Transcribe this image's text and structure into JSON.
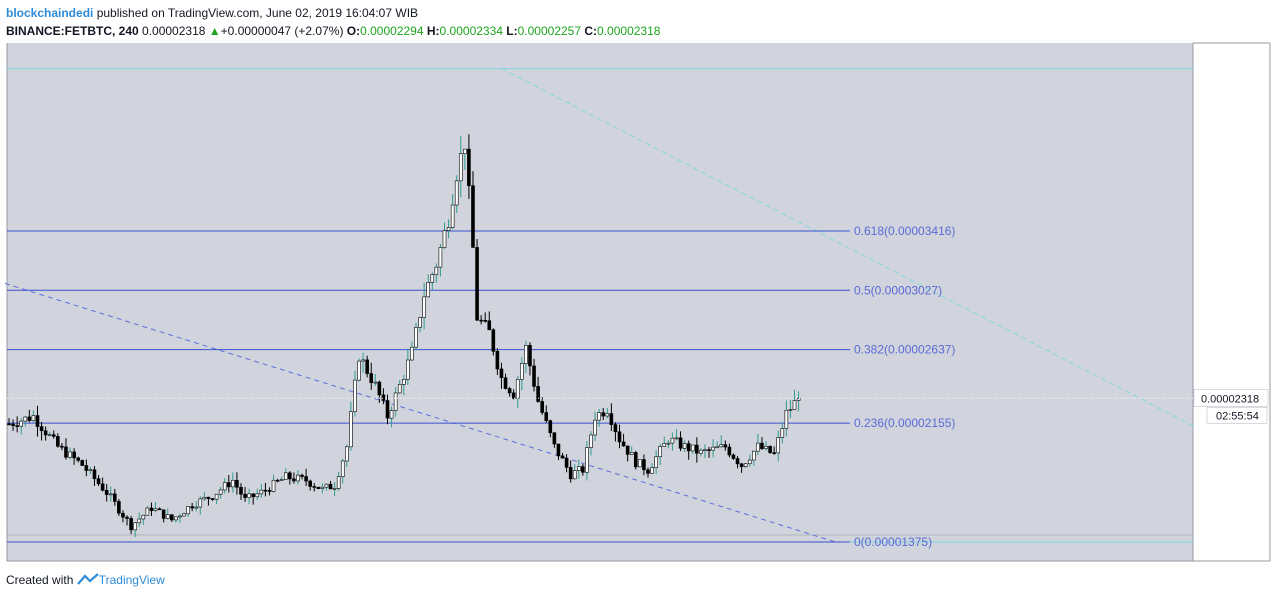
{
  "header": {
    "author": "blockchaindedi",
    "published": "published on TradingView.com, June 02, 2019 16:04:07 WIB",
    "symbol": "BINANCE:FETBTC, 240",
    "last": "0.00002318",
    "change": "+0.00000047 (+2.07%)",
    "o_label": "O:",
    "o_value": "0.00002294",
    "h_label": "H:",
    "h_value": "0.00002334",
    "l_label": "L:",
    "l_value": "0.00002257",
    "c_label": "C:",
    "c_value": "0.00002318"
  },
  "footer": {
    "created": "Created with",
    "brand": "TradingView"
  },
  "colors": {
    "plot_bg": "#d1d4dc",
    "fib_line": "#3a4fd0",
    "fib_text": "#5a6ad8",
    "cyan": "#7fd8e0",
    "candle_up": "#ffffff",
    "candle_down": "#000000",
    "wick_up": "#2e9e8e",
    "wick_down": "#000000",
    "price_tag_bg": "#ffffff"
  },
  "chart_data": {
    "type": "candlestick",
    "yrange": [
      1.25e-05,
      4.65e-05
    ],
    "candle_count": 195,
    "price_tag": {
      "value": "0.00002318",
      "timer": "02:55:54"
    },
    "fib_levels": [
      {
        "label": "0.618(0.00003416)",
        "price": 3.416e-05
      },
      {
        "label": "0.5(0.00003027)",
        "price": 3.027e-05
      },
      {
        "label": "0.382(0.00002637)",
        "price": 2.637e-05
      },
      {
        "label": "0.236(0.00002155)",
        "price": 2.155e-05
      },
      {
        "label": "0(0.00001375)",
        "price": 1.375e-05
      }
    ],
    "top_cyan_level": 4.482e-05,
    "trend_lines": [
      {
        "name": "falling-trendline-blue",
        "style": "dashed",
        "from": {
          "i": -1,
          "p": 3.072e-05
        },
        "to": {
          "i": 203,
          "p": 1.375e-05
        }
      },
      {
        "name": "falling-trendline-cyan",
        "style": "dashed",
        "from": {
          "i": 121,
          "p": 4.482e-05
        },
        "to": {
          "i": 291,
          "p": 2.136e-05
        }
      }
    ],
    "waypoints": [
      [
        0,
        2.15e-05
      ],
      [
        6,
        2.2e-05
      ],
      [
        12,
        2e-05
      ],
      [
        18,
        1.88e-05
      ],
      [
        24,
        1.7e-05
      ],
      [
        30,
        1.48e-05
      ],
      [
        35,
        1.6e-05
      ],
      [
        40,
        1.52e-05
      ],
      [
        45,
        1.62e-05
      ],
      [
        50,
        1.68e-05
      ],
      [
        55,
        1.78e-05
      ],
      [
        58,
        1.65e-05
      ],
      [
        62,
        1.7e-05
      ],
      [
        68,
        1.8e-05
      ],
      [
        73,
        1.78e-05
      ],
      [
        77,
        1.72e-05
      ],
      [
        80,
        1.75e-05
      ],
      [
        83,
        2e-05
      ],
      [
        86,
        2.6e-05
      ],
      [
        90,
        2.4e-05
      ],
      [
        93,
        2.2e-05
      ],
      [
        96,
        2.4e-05
      ],
      [
        99,
        2.62e-05
      ],
      [
        102,
        3e-05
      ],
      [
        105,
        3.2e-05
      ],
      [
        108,
        3.5e-05
      ],
      [
        110,
        3.8e-05
      ],
      [
        112,
        4e-05
      ],
      [
        114,
        3.3e-05
      ],
      [
        115,
        2.85e-05
      ],
      [
        118,
        2.75e-05
      ],
      [
        121,
        2.45e-05
      ],
      [
        124,
        2.35e-05
      ],
      [
        127,
        2.65e-05
      ],
      [
        130,
        2.3e-05
      ],
      [
        134,
        2e-05
      ],
      [
        138,
        1.82e-05
      ],
      [
        141,
        1.85e-05
      ],
      [
        144,
        2.2e-05
      ],
      [
        147,
        2.25e-05
      ],
      [
        150,
        2.05e-05
      ],
      [
        154,
        1.9e-05
      ],
      [
        157,
        1.85e-05
      ],
      [
        162,
        2.05e-05
      ],
      [
        166,
        2e-05
      ],
      [
        170,
        1.96e-05
      ],
      [
        176,
        2e-05
      ],
      [
        180,
        1.88e-05
      ],
      [
        184,
        2e-05
      ],
      [
        188,
        1.95e-05
      ],
      [
        191,
        2.22e-05
      ],
      [
        194,
        2.32e-05
      ]
    ]
  }
}
